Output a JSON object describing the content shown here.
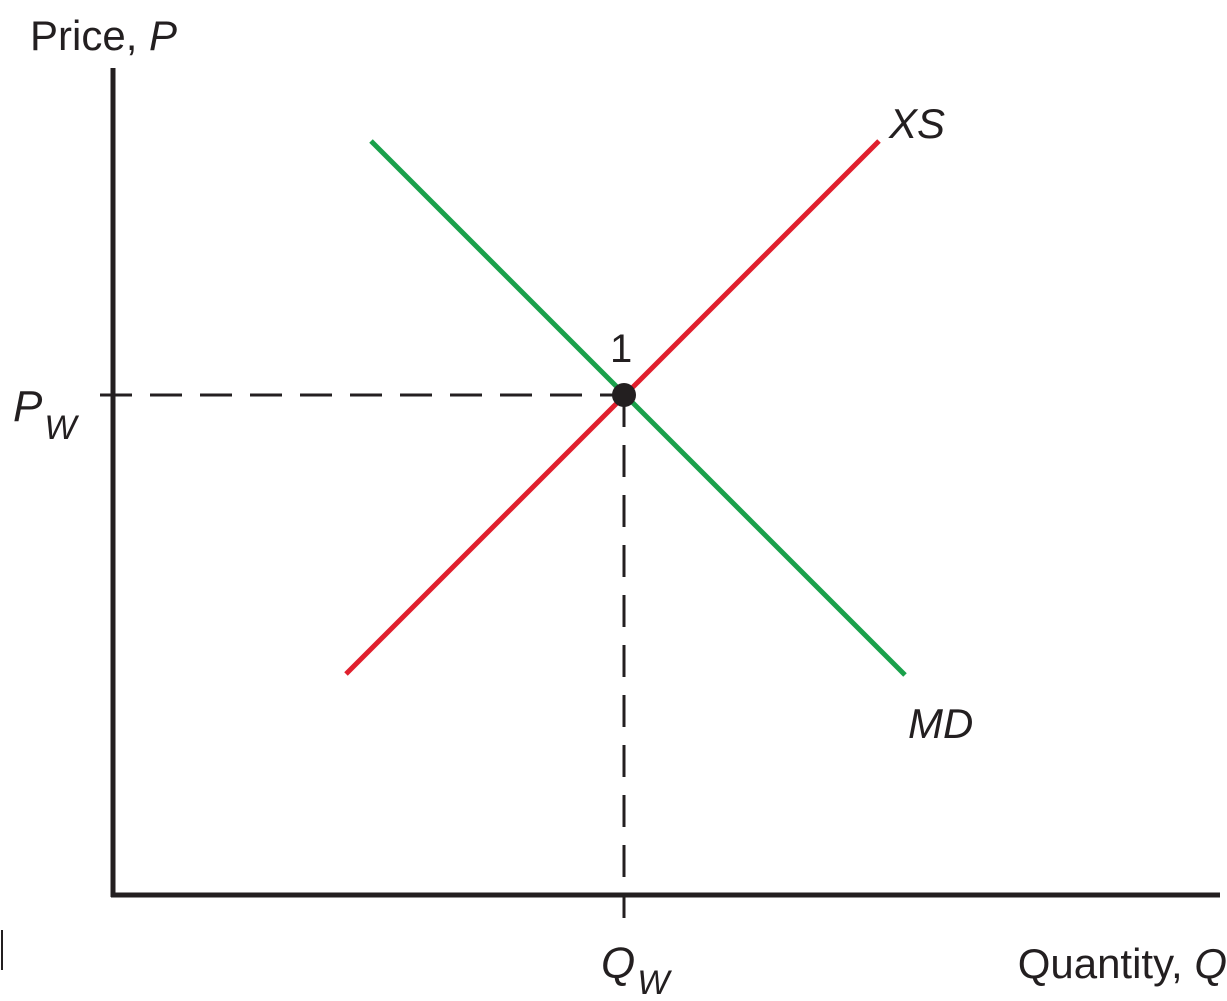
{
  "axes": {
    "y_title": "Price,",
    "y_symbol": "P",
    "x_title": "Quantity,",
    "x_symbol": "Q"
  },
  "curves": {
    "supply": {
      "label": "XS",
      "color": "#e0202e"
    },
    "demand": {
      "label": "MD",
      "color": "#1aa14b"
    }
  },
  "equilibrium": {
    "label": "1",
    "price": {
      "main": "P",
      "sub": "W"
    },
    "quantity": {
      "main": "Q",
      "sub": "W"
    }
  },
  "colors": {
    "axis": "#231f20",
    "guide": "#231f20",
    "point": "#231f20"
  }
}
